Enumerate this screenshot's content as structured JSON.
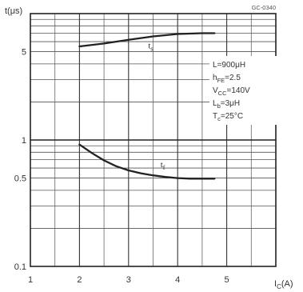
{
  "reference": "GC-0340",
  "chart_data": {
    "type": "line",
    "ylabel": "t(μs)",
    "xlabel": "I_C(A)",
    "x_scale": "linear",
    "y_scale": "log",
    "xlim": [
      1,
      6
    ],
    "ylim": [
      0.1,
      10
    ],
    "x_ticks": [
      1,
      2,
      3,
      4,
      5
    ],
    "y_ticks": [
      {
        "value": 0.1,
        "label": "0.1"
      },
      {
        "value": 0.5,
        "label": "0.5"
      },
      {
        "value": 1,
        "label": "1"
      },
      {
        "value": 5,
        "label": "5"
      }
    ],
    "grid": true,
    "series": [
      {
        "name": "t_s",
        "label_base": "t",
        "label_sub": "s",
        "label_at": [
          3.4,
          5.3
        ],
        "x": [
          2.0,
          2.5,
          3.0,
          3.5,
          4.0,
          4.5,
          4.75
        ],
        "values": [
          5.5,
          5.8,
          6.2,
          6.6,
          6.9,
          7.0,
          7.0
        ]
      },
      {
        "name": "t_f",
        "label_base": "t",
        "label_sub": "f",
        "label_at": [
          3.65,
          0.61
        ],
        "x": [
          2.0,
          2.25,
          2.5,
          2.75,
          3.0,
          3.25,
          3.5,
          3.75,
          4.0,
          4.25,
          4.5,
          4.75
        ],
        "values": [
          0.92,
          0.79,
          0.69,
          0.62,
          0.575,
          0.545,
          0.525,
          0.51,
          0.5,
          0.495,
          0.495,
          0.495
        ]
      }
    ]
  },
  "conditions": [
    {
      "base": "L=900μH",
      "sub": "",
      "rest": ""
    },
    {
      "base": "h",
      "sub": "FE",
      "rest": "=2.5"
    },
    {
      "base": "V",
      "sub": "CC",
      "rest": "=140V"
    },
    {
      "base": "L",
      "sub": "b",
      "rest": "=3μH"
    },
    {
      "base": "T",
      "sub": "c",
      "rest": "=25°C"
    }
  ]
}
